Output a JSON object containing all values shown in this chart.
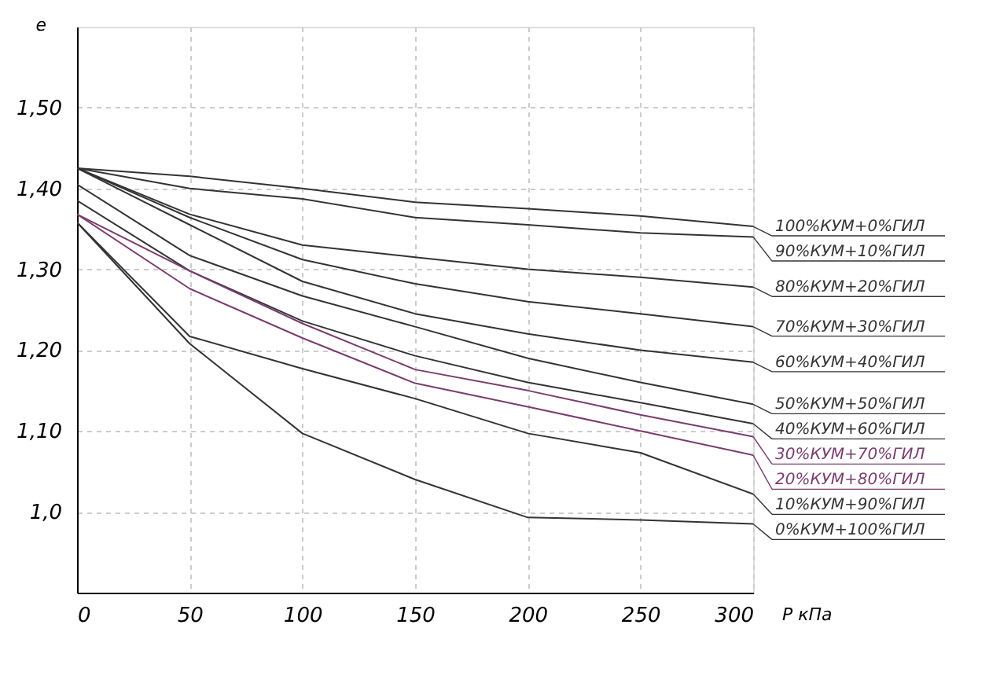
{
  "chart_data": {
    "type": "line",
    "xlabel": "P кПа",
    "ylabel": "e",
    "x": [
      0,
      50,
      100,
      150,
      200,
      250,
      300
    ],
    "xlim": [
      0,
      300
    ],
    "xticks": [
      0,
      50,
      100,
      150,
      200,
      250,
      300
    ],
    "ylim": [
      0.9,
      1.6
    ],
    "yticks": [
      {
        "value": 1.0,
        "label": "1,0"
      },
      {
        "value": 1.1,
        "label": "1,10"
      },
      {
        "value": 1.2,
        "label": "1,20"
      },
      {
        "value": 1.3,
        "label": "1,30"
      },
      {
        "value": 1.4,
        "label": "1,40"
      },
      {
        "value": 1.5,
        "label": "1,50"
      }
    ],
    "grid": true,
    "legend": "right",
    "marker": "none",
    "line_style": "solid",
    "series": [
      {
        "name": "100%КУМ+0%ГИЛ",
        "color": "#333333",
        "values": [
          1.425,
          1.415,
          1.4,
          1.383,
          1.375,
          1.366,
          1.353
        ]
      },
      {
        "name": "90%КУМ+10%ГИЛ",
        "color": "#333333",
        "values": [
          1.425,
          1.4,
          1.387,
          1.364,
          1.355,
          1.345,
          1.34
        ]
      },
      {
        "name": "80%КУМ+20%ГИЛ",
        "color": "#333333",
        "values": [
          1.425,
          1.368,
          1.33,
          1.315,
          1.3,
          1.29,
          1.278
        ]
      },
      {
        "name": "70%КУМ+30%ГИЛ",
        "color": "#333333",
        "values": [
          1.425,
          1.364,
          1.312,
          1.282,
          1.26,
          1.245,
          1.229
        ]
      },
      {
        "name": "60%КУМ+40%ГИЛ",
        "color": "#333333",
        "values": [
          1.425,
          1.355,
          1.285,
          1.245,
          1.22,
          1.2,
          1.185
        ]
      },
      {
        "name": "50%КУМ+50%ГИЛ",
        "color": "#333333",
        "values": [
          1.405,
          1.317,
          1.267,
          1.229,
          1.19,
          1.16,
          1.133
        ]
      },
      {
        "name": "40%КУМ+60%ГИЛ",
        "color": "#333333",
        "values": [
          1.385,
          1.298,
          1.236,
          1.193,
          1.16,
          1.135,
          1.109
        ]
      },
      {
        "name": "30%КУМ+70%ГИЛ",
        "color": "#7a3c6e",
        "values": [
          1.368,
          1.298,
          1.233,
          1.176,
          1.15,
          1.12,
          1.093
        ]
      },
      {
        "name": "20%КУМ+80%ГИЛ",
        "color": "#7a3c6e",
        "values": [
          1.368,
          1.276,
          1.215,
          1.159,
          1.13,
          1.1,
          1.07
        ]
      },
      {
        "name": "10%КУМ+90%ГИЛ",
        "color": "#333333",
        "values": [
          1.358,
          1.217,
          1.177,
          1.14,
          1.097,
          1.073,
          1.022
        ]
      },
      {
        "name": "0%КУМ+100%ГИЛ",
        "color": "#333333",
        "values": [
          1.358,
          1.208,
          1.097,
          1.04,
          0.993,
          0.99,
          0.985
        ]
      }
    ]
  }
}
